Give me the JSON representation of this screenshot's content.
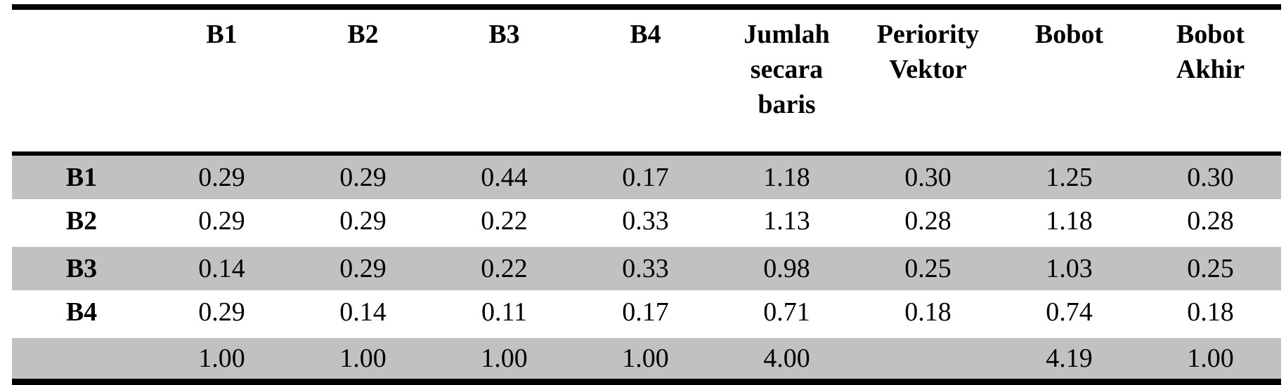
{
  "table": {
    "title_semantic": "pairwise-comparison-normalized-matrix",
    "columns": [
      {
        "label": "",
        "is_row_label_column": true
      },
      {
        "label": "B1"
      },
      {
        "label": "B2"
      },
      {
        "label": "B3"
      },
      {
        "label": "B4"
      },
      {
        "label": "Jumlah\nsecara\nbaris"
      },
      {
        "label": "Periority\nVektor"
      },
      {
        "label": "Bobot"
      },
      {
        "label": "Bobot\nAkhir"
      }
    ],
    "rows": [
      {
        "label": "B1",
        "values": [
          "0.29",
          "0.29",
          "0.44",
          "0.17",
          "1.18",
          "0.30",
          "1.25",
          "0.30"
        ],
        "shaded": true,
        "gap_top": false
      },
      {
        "label": "B2",
        "values": [
          "0.29",
          "0.29",
          "0.22",
          "0.33",
          "1.13",
          "0.28",
          "1.18",
          "0.28"
        ],
        "shaded": false,
        "gap_top": false
      },
      {
        "label": "B3",
        "values": [
          "0.14",
          "0.29",
          "0.22",
          "0.33",
          "0.98",
          "0.25",
          "1.03",
          "0.25"
        ],
        "shaded": true,
        "gap_top": true
      },
      {
        "label": "B4",
        "values": [
          "0.29",
          "0.14",
          "0.11",
          "0.17",
          "0.71",
          "0.18",
          "0.74",
          "0.18"
        ],
        "shaded": false,
        "gap_top": false
      },
      {
        "label": "",
        "values": [
          "1.00",
          "1.00",
          "1.00",
          "1.00",
          "4.00",
          "",
          "4.19",
          "1.00"
        ],
        "shaded": true,
        "gap_top": true
      }
    ],
    "colors": {
      "shaded_row": "#c1c1c1",
      "border": "#000000",
      "background": "#ffffff",
      "text": "#000000"
    }
  }
}
